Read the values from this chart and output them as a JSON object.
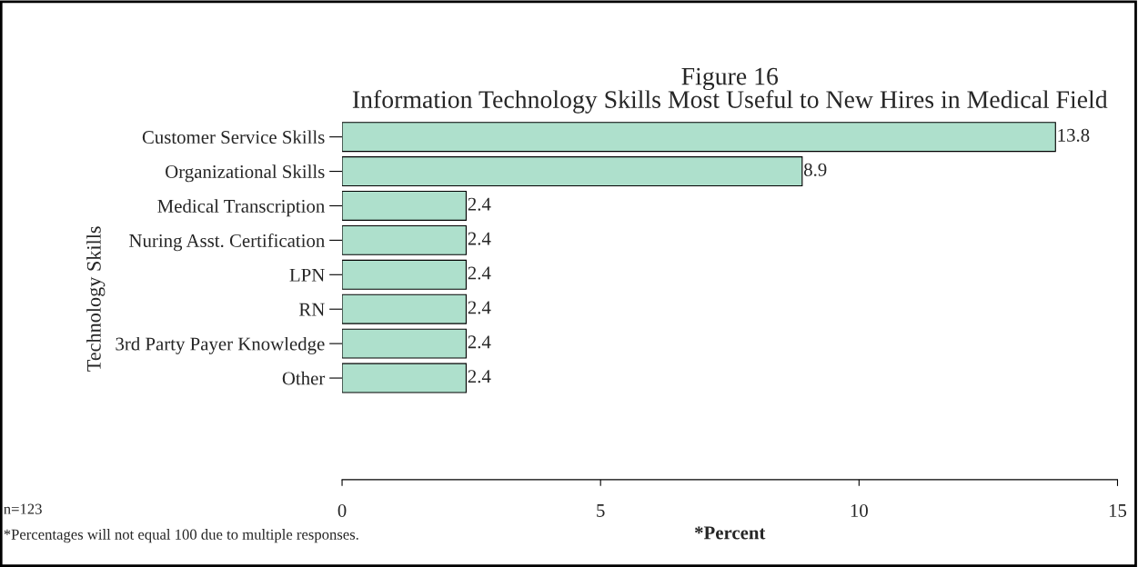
{
  "chart_data": {
    "type": "bar",
    "orientation": "horizontal",
    "title": "Figure 16\nInformation Technology Skills Most Useful to New Hires in Medical Field",
    "xlabel": "*Percent",
    "ylabel": "Technology Skills",
    "categories": [
      "Customer Service Skills",
      "Organizational Skills",
      "Medical Transcription",
      "Nuring Asst. Certification",
      "LPN",
      "RN",
      "3rd Party Payer Knowledge",
      "Other"
    ],
    "values": [
      13.8,
      8.9,
      2.4,
      2.4,
      2.4,
      2.4,
      2.4,
      2.4
    ],
    "color": "#aee0cc",
    "xlim": [
      0,
      15
    ],
    "xticks": [
      0,
      5,
      10,
      15
    ],
    "data_labels": true,
    "grid": false,
    "legend": false,
    "annotations": [
      "n=123",
      "*Percentages will not equal 100 due to multiple responses."
    ]
  }
}
